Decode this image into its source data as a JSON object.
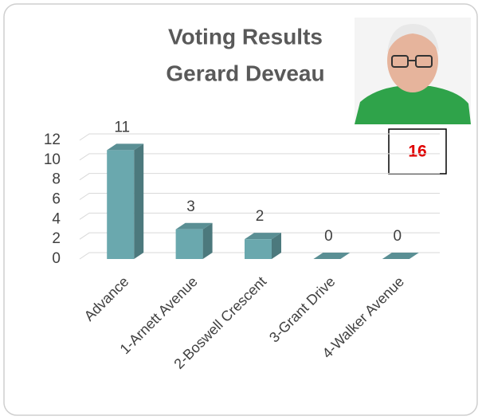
{
  "chart_data": {
    "type": "bar3d",
    "title": "Voting Results",
    "subtitle": "Gerard Deveau",
    "categories": [
      "Advance",
      "1-Arnett Avenue",
      "2-Boswell Crescent",
      "3-Grant Drive",
      "4-Walker Avenue"
    ],
    "values": [
      11,
      3,
      2,
      0,
      0
    ],
    "color": "#6aa8ae",
    "ylim": [
      0,
      12
    ],
    "yticks": [
      0,
      2,
      4,
      6,
      8,
      10,
      12
    ],
    "grid": true,
    "annotation": 16
  }
}
